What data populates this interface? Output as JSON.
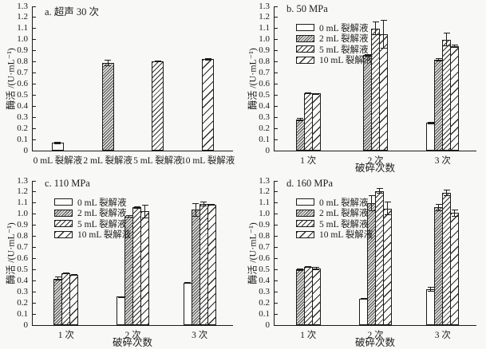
{
  "figure": {
    "background": "#f8f8f6",
    "ink_color": "#1c1c1c",
    "description_note": "four-panel bar chart figure"
  },
  "chart_data": [
    {
      "id": "a",
      "type": "bar",
      "title": "a. 超声 30 次",
      "ylabel": "酶活 /(U·mL⁻¹)",
      "xlabel": "",
      "ylim": [
        0,
        1.3
      ],
      "ytick_step": 0.1,
      "grid": false,
      "legend": false,
      "legend_position": "none",
      "categories": [
        "0 mL 裂解液",
        "2 mL 裂解液",
        "5 mL 裂解液",
        "10 mL 裂解液"
      ],
      "patterns": [
        "plain",
        "dense",
        "medium",
        "wide"
      ],
      "series": [
        {
          "name": "0 mL 裂解液",
          "values": [
            0.07,
            null,
            null,
            null
          ],
          "errors": [
            0.01,
            null,
            null,
            null
          ]
        },
        {
          "name": "2 mL 裂解液",
          "values": [
            null,
            0.79,
            null,
            null
          ],
          "errors": [
            null,
            0.03,
            null,
            null
          ]
        },
        {
          "name": "5 mL 裂解液",
          "values": [
            null,
            null,
            0.805,
            null
          ],
          "errors": [
            null,
            null,
            0.008,
            null
          ]
        },
        {
          "name": "10 mL 裂解液",
          "values": [
            null,
            null,
            null,
            0.825
          ],
          "errors": [
            null,
            null,
            null,
            0.01
          ]
        }
      ]
    },
    {
      "id": "b",
      "type": "bar",
      "title": "b. 50 MPa",
      "ylabel": "酶活 /(U·mL⁻¹)",
      "xlabel": "破碎次数",
      "ylim": [
        0,
        1.3
      ],
      "ytick_step": 0.1,
      "grid": false,
      "legend": true,
      "legend_position": "upper-left-inside",
      "categories": [
        "1 次",
        "2 次",
        "3 次"
      ],
      "patterns": [
        "plain",
        "dense",
        "medium",
        "wide"
      ],
      "series": [
        {
          "name": "0 mL 裂解液",
          "values": [
            null,
            null,
            0.25
          ],
          "errors": [
            null,
            null,
            0.01
          ]
        },
        {
          "name": "2 mL 裂解液",
          "values": [
            0.28,
            0.86,
            0.82
          ],
          "errors": [
            0.015,
            0.01,
            0.015
          ]
        },
        {
          "name": "5 mL 裂解液",
          "values": [
            0.52,
            1.1,
            1.0
          ],
          "errors": [
            0.005,
            0.06,
            0.06
          ]
        },
        {
          "name": "10 mL 裂解液",
          "values": [
            0.515,
            1.05,
            0.94
          ],
          "errors": [
            0.005,
            0.13,
            0.012
          ]
        }
      ]
    },
    {
      "id": "c",
      "type": "bar",
      "title": "c. 110 MPa",
      "ylabel": "酶活 /(U·mL⁻¹)",
      "xlabel": "破碎次数",
      "ylim": [
        0,
        1.3
      ],
      "ytick_step": 0.1,
      "grid": false,
      "legend": true,
      "legend_position": "upper-left-inside",
      "categories": [
        "1 次",
        "2 次",
        "3 次"
      ],
      "patterns": [
        "plain",
        "dense",
        "medium",
        "wide"
      ],
      "series": [
        {
          "name": "0 mL 裂解液",
          "values": [
            null,
            0.255,
            0.38
          ],
          "errors": [
            null,
            0.005,
            0.01
          ]
        },
        {
          "name": "2 mL 裂解液",
          "values": [
            0.42,
            0.98,
            1.04
          ],
          "errors": [
            0.015,
            0.01,
            0.06
          ]
        },
        {
          "name": "5 mL 裂解液",
          "values": [
            0.47,
            1.06,
            1.09
          ],
          "errors": [
            0.006,
            0.012,
            0.02
          ]
        },
        {
          "name": "10 mL 裂解液",
          "values": [
            0.455,
            1.025,
            1.085
          ],
          "errors": [
            0.006,
            0.06,
            0.01
          ]
        }
      ]
    },
    {
      "id": "d",
      "type": "bar",
      "title": "d. 160 MPa",
      "ylabel": "酶活 /(U·mL⁻¹)",
      "xlabel": "破碎次数",
      "ylim": [
        0,
        1.3
      ],
      "ytick_step": 0.1,
      "grid": false,
      "legend": true,
      "legend_position": "upper-left-inside",
      "categories": [
        "1 次",
        "2 次",
        "3 次"
      ],
      "patterns": [
        "plain",
        "dense",
        "medium",
        "wide"
      ],
      "series": [
        {
          "name": "0 mL 裂解液",
          "values": [
            null,
            0.24,
            0.325
          ],
          "errors": [
            null,
            0.005,
            0.02
          ]
        },
        {
          "name": "2 mL 裂解液",
          "values": [
            0.5,
            1.1,
            1.06
          ],
          "errors": [
            0.012,
            0.07,
            0.03
          ]
        },
        {
          "name": "5 mL 裂解液",
          "values": [
            0.525,
            1.21,
            1.19
          ],
          "errors": [
            0.006,
            0.025,
            0.03
          ]
        },
        {
          "name": "10 mL 裂解液",
          "values": [
            0.51,
            1.05,
            1.01
          ],
          "errors": [
            0.012,
            0.06,
            0.03
          ]
        }
      ]
    }
  ]
}
